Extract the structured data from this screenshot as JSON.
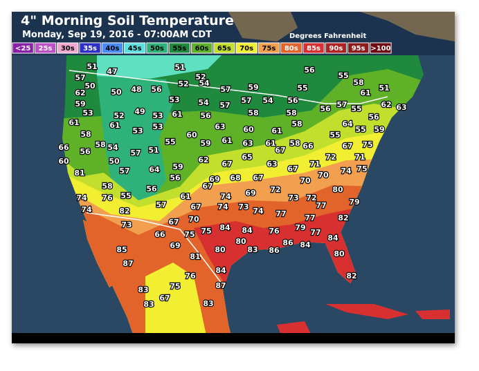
{
  "header": {
    "title": "4\" Morning Soil Temperature",
    "subtitle": "Monday, Sep 19, 2016 - 07:00AM CDT",
    "units": "Degrees Fahrenheit"
  },
  "legend": [
    {
      "label": "<25",
      "color": "#8a1fa8"
    },
    {
      "label": "25s",
      "color": "#c050c8"
    },
    {
      "label": "30s",
      "color": "#f2a8d0"
    },
    {
      "label": "35s",
      "color": "#2e2ec8"
    },
    {
      "label": "40s",
      "color": "#4a8cf5"
    },
    {
      "label": "45s",
      "color": "#5fe0e0"
    },
    {
      "label": "50s",
      "color": "#2fb27a"
    },
    {
      "label": "55s",
      "color": "#1f8a3e"
    },
    {
      "label": "60s",
      "color": "#5fb228"
    },
    {
      "label": "65s",
      "color": "#c2df2e"
    },
    {
      "label": "70s",
      "color": "#f2ee32"
    },
    {
      "label": "75s",
      "color": "#f2a050"
    },
    {
      "label": "80s",
      "color": "#e2642a"
    },
    {
      "label": "85s",
      "color": "#d83030"
    },
    {
      "label": "90s",
      "color": "#b02222"
    },
    {
      "label": "95s",
      "color": "#8e1a1a"
    },
    {
      "label": ">100",
      "color": "#6e0a12"
    }
  ],
  "stations": [
    51,
    47,
    51,
    56,
    55,
    57,
    50,
    52,
    52,
    58,
    48,
    50,
    56,
    54,
    57,
    59,
    55,
    61,
    51,
    62,
    53,
    54,
    57,
    57,
    54,
    56,
    57,
    56,
    55,
    62,
    63,
    59,
    53,
    52,
    49,
    61,
    53,
    56,
    58,
    58,
    56,
    61,
    61,
    53,
    53,
    63,
    60,
    61,
    58,
    64,
    55,
    59,
    58,
    60,
    55,
    61,
    63,
    61,
    58,
    66,
    66,
    56,
    58,
    54,
    55,
    59,
    67,
    67,
    75,
    57,
    51,
    50,
    62,
    67,
    65,
    63,
    67,
    71,
    72,
    71,
    60,
    57,
    64,
    59,
    56,
    74,
    75,
    81,
    69,
    68,
    67,
    70,
    70,
    67,
    58,
    56,
    69,
    72,
    80,
    74,
    76,
    55,
    61,
    74,
    73,
    72,
    79,
    67,
    74,
    73,
    74,
    57,
    82,
    74,
    77,
    77,
    70,
    67,
    73,
    77,
    82,
    75,
    84,
    84,
    76,
    79,
    77,
    75,
    66,
    84,
    80,
    86,
    84,
    85,
    69,
    80,
    83,
    86,
    81,
    80,
    87,
    84,
    76,
    82,
    87,
    75,
    83,
    83,
    67,
    83
  ]
}
